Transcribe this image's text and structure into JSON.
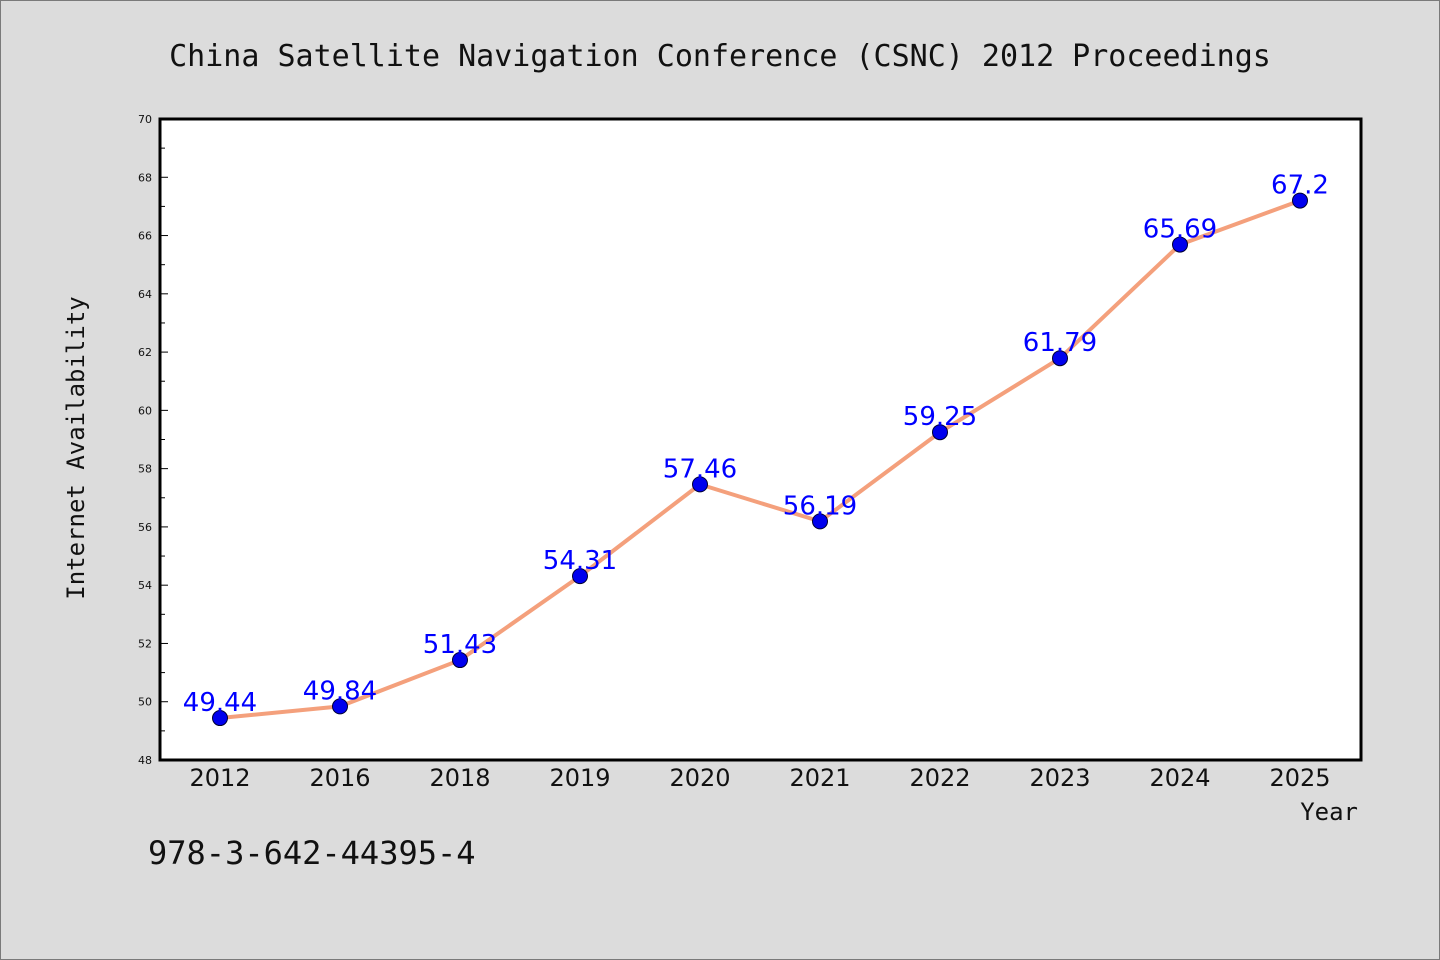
{
  "chart_data": {
    "type": "line",
    "title": "China Satellite Navigation Conference (CSNC) 2012 Proceedings",
    "xlabel": "Year",
    "ylabel": "Internet Availability",
    "categories": [
      "2012",
      "2016",
      "2018",
      "2019",
      "2020",
      "2021",
      "2022",
      "2023",
      "2024",
      "2025"
    ],
    "values": [
      49.44,
      49.84,
      51.43,
      54.31,
      57.46,
      56.19,
      59.25,
      61.79,
      65.69,
      67.2
    ],
    "data_labels": [
      "49.44",
      "49.84",
      "51.43",
      "54.31",
      "57.46",
      "56.19",
      "59.25",
      "61.79",
      "65.69",
      "67.2"
    ],
    "ylim": [
      48,
      70
    ],
    "yticks": [
      48,
      50,
      52,
      54,
      56,
      58,
      60,
      62,
      64,
      66,
      68,
      70
    ],
    "ytick_labels": [
      "48",
      "50",
      "52",
      "54",
      "56",
      "58",
      "60",
      "62",
      "64",
      "66",
      "68",
      "70"
    ],
    "grid": false,
    "legend": "none",
    "colors": {
      "line": "#f4a07c",
      "marker": "#0000ee",
      "marker_edge": "#000033",
      "data_label": "#0000ff",
      "background": "#dcdcdc",
      "plot_area": "#ffffff"
    }
  },
  "footer": {
    "isbn": "978-3-642-44395-4"
  }
}
